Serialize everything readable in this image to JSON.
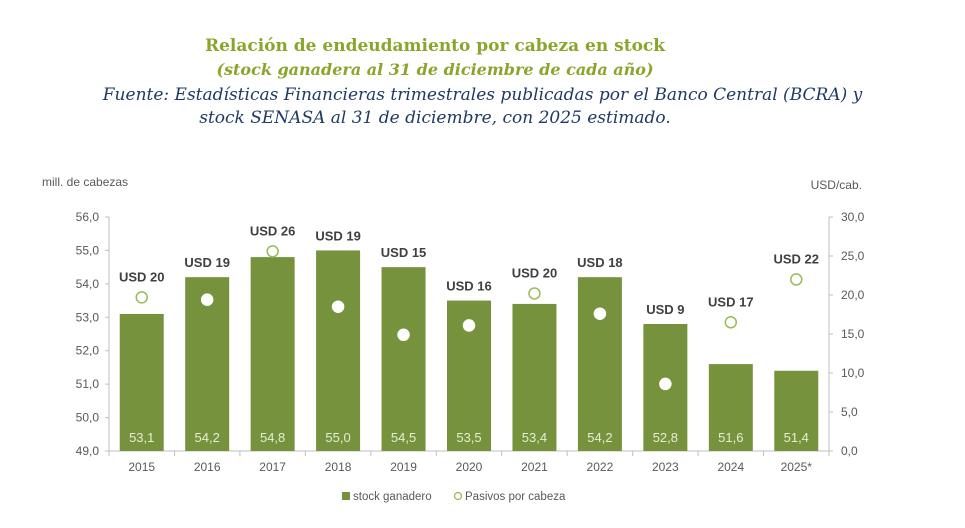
{
  "titles": {
    "main": "Relación de endeudamiento por cabeza en stock",
    "subtitle": "(stock ganadera al 31 de diciembre de cada año)",
    "source_line1": "Fuente: Estadísticas Financieras trimestrales publicadas por el Banco Central (BCRA) y",
    "source_line2": "stock SENASA al 31 de diciembre, con 2025 estimado."
  },
  "colors": {
    "bar": "#76923c",
    "title_green": "#8aa62a",
    "source_blue": "#1f3a63",
    "marker_outline": "#9bbb59",
    "axis": "#bfbfbf"
  },
  "chart_data": {
    "type": "bar",
    "title": "Relación de endeudamiento por cabeza en stock",
    "ylabel": "mill. de cabezas",
    "y2label": "USD/cab.",
    "ylim": [
      49.0,
      56.0
    ],
    "y2lim": [
      0.0,
      30.0
    ],
    "yticks": [
      "49,0",
      "50,0",
      "51,0",
      "52,0",
      "53,0",
      "54,0",
      "55,0",
      "56,0"
    ],
    "y2ticks": [
      "0,0",
      "5,0",
      "10,0",
      "15,0",
      "20,0",
      "25,0",
      "30,0"
    ],
    "categories": [
      "2015",
      "2016",
      "2017",
      "2018",
      "2019",
      "2020",
      "2021",
      "2022",
      "2023",
      "2024",
      "2025*"
    ],
    "grid": false,
    "legend_position": "bottom",
    "series": [
      {
        "name": "stock ganadero",
        "type": "bar",
        "axis": "left",
        "values": [
          53.1,
          54.2,
          54.8,
          55.0,
          54.5,
          53.5,
          53.4,
          54.2,
          52.8,
          51.6,
          51.4
        ],
        "labels": [
          "53,1",
          "54,2",
          "54,8",
          "55,0",
          "54,5",
          "53,5",
          "53,4",
          "54,2",
          "52,8",
          "51,6",
          "51,4"
        ]
      },
      {
        "name": "Pasivos por cabeza",
        "type": "scatter",
        "axis": "right",
        "values": [
          19.7,
          19.4,
          25.6,
          18.5,
          14.9,
          16.1,
          20.2,
          17.6,
          8.6,
          16.5,
          22.0
        ],
        "labels": [
          "USD 20",
          "USD 19",
          "USD 26",
          "USD 19",
          "USD 15",
          "USD 16",
          "USD 20",
          "USD 18",
          "USD 9",
          "USD 17",
          "USD 22"
        ]
      }
    ]
  }
}
